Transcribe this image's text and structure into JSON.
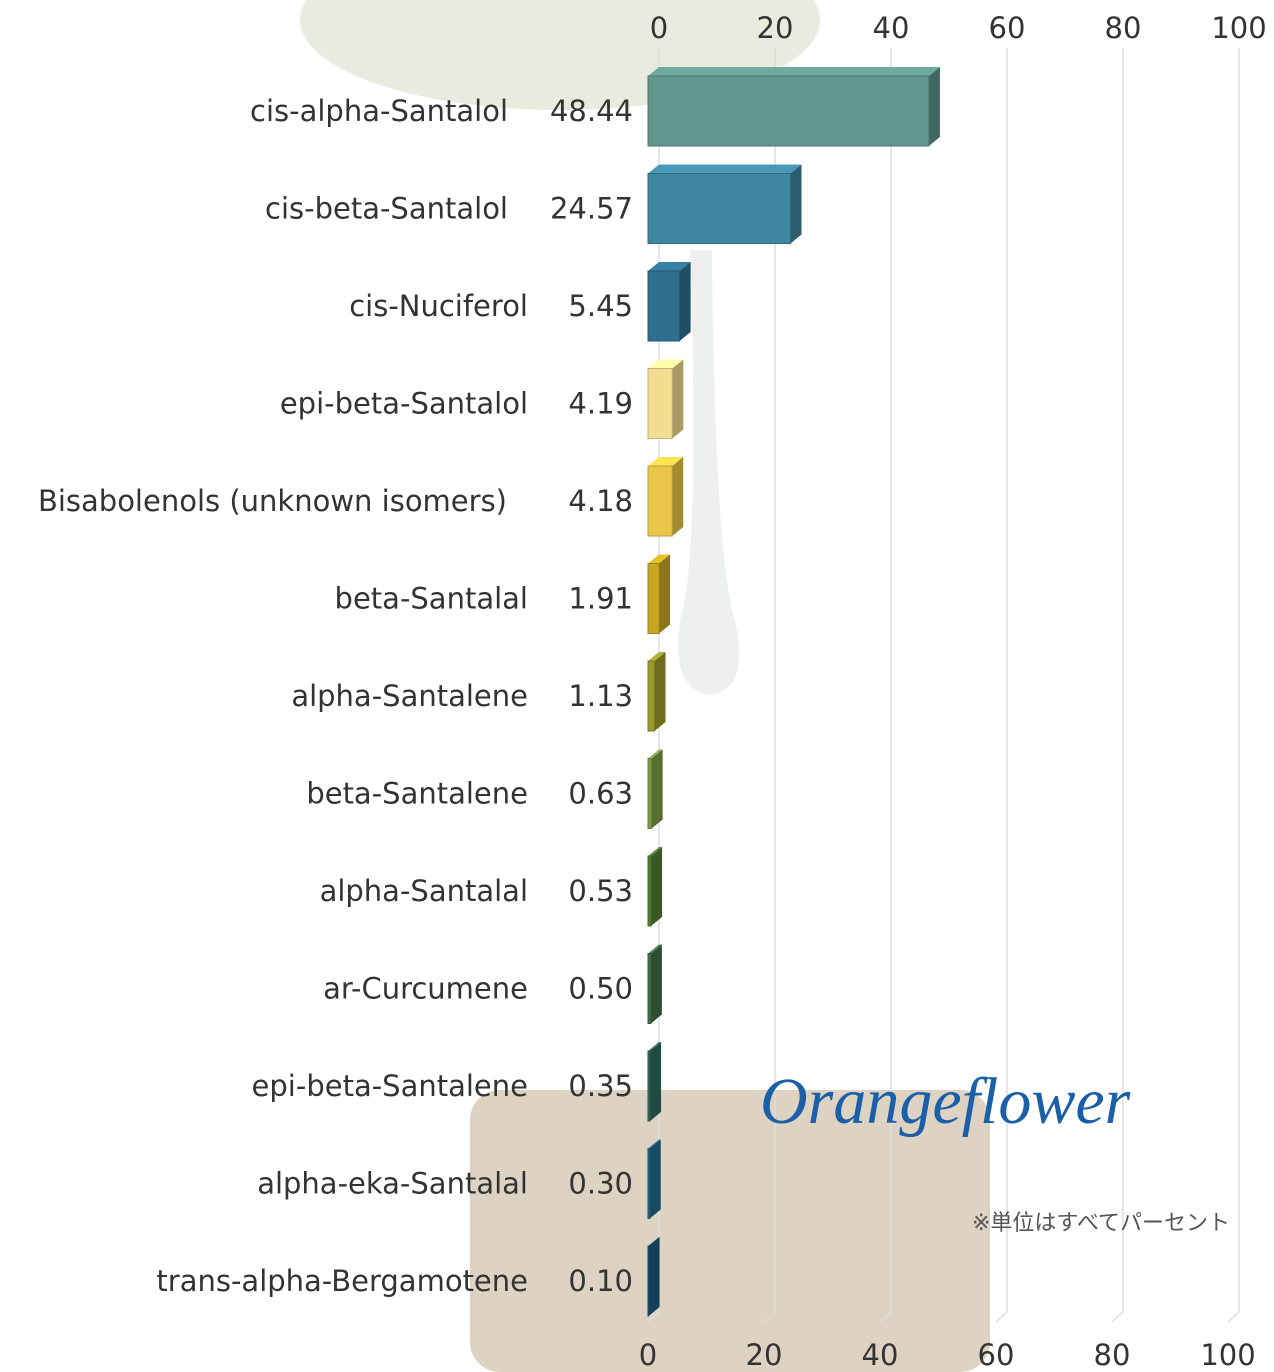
{
  "chart_data": {
    "type": "bar",
    "orientation": "horizontal",
    "categories": [
      "cis-alpha-Santalol",
      "cis-beta-Santalol",
      "cis-Nuciferol",
      "epi-beta-Santalol",
      "Bisabolenols (unknown isomers)",
      "beta-Santalal",
      "alpha-Santalene",
      "beta-Santalene",
      "alpha-Santalal",
      "ar-Curcumene",
      "epi-beta-Santalene",
      "alpha-eka-Santalal",
      "trans-alpha-Bergamotene"
    ],
    "values": [
      48.44,
      24.57,
      5.45,
      4.19,
      4.18,
      1.91,
      1.13,
      0.63,
      0.53,
      0.5,
      0.35,
      0.3,
      0.1
    ],
    "value_labels": [
      "48.44",
      "24.57",
      "5.45",
      "4.19",
      "4.18",
      "1.91",
      "1.13",
      "0.63",
      "0.53",
      "0.50",
      "0.35",
      "0.30",
      "0.10"
    ],
    "colors": [
      "#5f958a",
      "#3f86a0",
      "#2f6f8f",
      "#f3dd92",
      "#e9c647",
      "#c8a823",
      "#9c9a2c",
      "#7c9b47",
      "#527f33",
      "#427048",
      "#2f6b5c",
      "#1f6b8c",
      "#1a5a80"
    ],
    "xlim": [
      0,
      100
    ],
    "xticks": [
      0,
      20,
      40,
      60,
      80,
      100
    ],
    "grid": true,
    "annotations": [
      "Orangeflower",
      "※単位はすべてパーセント"
    ]
  }
}
